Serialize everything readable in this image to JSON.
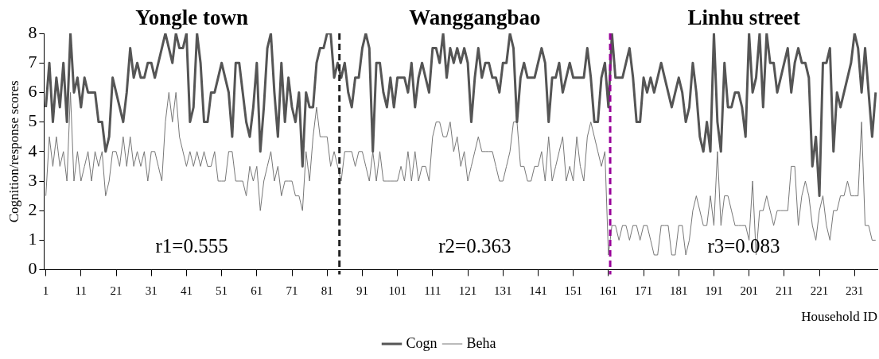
{
  "chart_data": {
    "type": "line",
    "xlabel": "Household ID",
    "ylabel": "Cognition/response scores",
    "x": [
      1,
      2,
      3,
      4,
      5,
      6,
      7,
      8,
      9,
      10,
      11,
      12,
      13,
      14,
      15,
      16,
      17,
      18,
      19,
      20,
      21,
      22,
      23,
      24,
      25,
      26,
      27,
      28,
      29,
      30,
      31,
      32,
      33,
      34,
      35,
      36,
      37,
      38,
      39,
      40,
      41,
      42,
      43,
      44,
      45,
      46,
      47,
      48,
      49,
      50,
      51,
      52,
      53,
      54,
      55,
      56,
      57,
      58,
      59,
      60,
      61,
      62,
      63,
      64,
      65,
      66,
      67,
      68,
      69,
      70,
      71,
      72,
      73,
      74,
      75,
      76,
      77,
      78,
      79,
      80,
      81,
      82,
      83,
      84,
      85,
      86,
      87,
      88,
      89,
      90,
      91,
      92,
      93,
      94,
      95,
      96,
      97,
      98,
      99,
      100,
      101,
      102,
      103,
      104,
      105,
      106,
      107,
      108,
      109,
      110,
      111,
      112,
      113,
      114,
      115,
      116,
      117,
      118,
      119,
      120,
      121,
      122,
      123,
      124,
      125,
      126,
      127,
      128,
      129,
      130,
      131,
      132,
      133,
      134,
      135,
      136,
      137,
      138,
      139,
      140,
      141,
      142,
      143,
      144,
      145,
      146,
      147,
      148,
      149,
      150,
      151,
      152,
      153,
      154,
      155,
      156,
      157,
      158,
      159,
      160,
      161,
      162,
      163,
      164,
      165,
      166,
      167,
      168,
      169,
      170,
      171,
      172,
      173,
      174,
      175,
      176,
      177,
      178,
      179,
      180,
      181,
      182,
      183,
      184,
      185,
      186,
      187,
      188,
      189,
      190,
      191,
      192,
      193,
      194,
      195,
      196,
      197,
      198,
      199,
      200,
      201,
      202,
      203,
      204,
      205,
      206,
      207,
      208,
      209,
      210,
      211,
      212,
      213,
      214,
      215,
      216,
      217,
      218,
      219,
      220,
      221,
      222,
      223,
      224,
      225,
      226,
      227,
      228,
      229,
      230,
      231,
      232,
      233,
      234,
      235,
      236,
      237
    ],
    "series": [
      {
        "name": "Cogn",
        "color": "#555555",
        "values": [
          5.5,
          7,
          5,
          6.5,
          5.5,
          7,
          5,
          8,
          6,
          6.5,
          5.5,
          6.5,
          6,
          6,
          6,
          5,
          5,
          4,
          4.5,
          6.5,
          6,
          5.5,
          5,
          6,
          7.5,
          6.5,
          7,
          6.5,
          6.5,
          7,
          7,
          6.5,
          7,
          7.5,
          8,
          7.5,
          7,
          8,
          7.5,
          7.5,
          8,
          5,
          5.5,
          8,
          7,
          5,
          5,
          6,
          6,
          6.5,
          7,
          6.5,
          6,
          4.5,
          7,
          7,
          6,
          5,
          4.5,
          5.5,
          7,
          4,
          5.5,
          7.5,
          8,
          6,
          4.5,
          7,
          5,
          6.5,
          5.5,
          5,
          6,
          3.5,
          6,
          5.5,
          5.5,
          7,
          7.5,
          7.5,
          8,
          8,
          6.5,
          7,
          6.5,
          7,
          6,
          5.5,
          6.5,
          6.5,
          7.5,
          8,
          7.5,
          4,
          7,
          7,
          6,
          5.5,
          6.5,
          5.5,
          6.5,
          6.5,
          6.5,
          6,
          7,
          5.5,
          6.5,
          7,
          6.5,
          6,
          7.5,
          7.5,
          7,
          8,
          6.5,
          7.5,
          7,
          7.5,
          7,
          7.5,
          7,
          5,
          6.5,
          7.5,
          6.5,
          7,
          7,
          6.5,
          6.5,
          6,
          7,
          7,
          8,
          7.5,
          5,
          6.5,
          7,
          6.5,
          6.5,
          6.5,
          7,
          7.5,
          7,
          5,
          6.5,
          6.5,
          7,
          6,
          6.5,
          7,
          6.5,
          6.5,
          6.5,
          6.5,
          7.5,
          6.5,
          5,
          5,
          6.5,
          7,
          5.5,
          8,
          6.5,
          6.5,
          6.5,
          7,
          7.5,
          6.5,
          5,
          5,
          6.5,
          6,
          6.5,
          6,
          6.5,
          7,
          6.5,
          6,
          5.5,
          6,
          6.5,
          6,
          5,
          5.5,
          7,
          6,
          4.5,
          4,
          5,
          4,
          8,
          5,
          4,
          7,
          5.5,
          5.5,
          6,
          6,
          5.5,
          4.5,
          8,
          6,
          6.5,
          8,
          5.5,
          8,
          7,
          7,
          6,
          6.5,
          7,
          7.5,
          6,
          7,
          7.5,
          7,
          7,
          6.5,
          3.5,
          4.5,
          2.5,
          7,
          7,
          7.5,
          4,
          6,
          5.5,
          6,
          6.5,
          7,
          8,
          7.5,
          6,
          7.5,
          6,
          4.5,
          6
        ]
      },
      {
        "name": "Beha",
        "color": "#777777",
        "values": [
          2.5,
          4.5,
          3.5,
          4.5,
          3.5,
          4,
          3,
          6,
          3,
          4,
          3,
          3.5,
          4,
          3,
          4,
          3.5,
          4,
          2.5,
          3,
          4,
          4,
          3.5,
          4.5,
          3.5,
          4.5,
          3.5,
          4,
          3.5,
          4,
          3,
          4,
          4,
          3.5,
          3,
          5,
          6,
          5,
          6,
          4.5,
          4,
          3.5,
          4,
          3.5,
          4,
          3.5,
          4,
          3.5,
          3.5,
          4,
          3,
          3,
          3,
          4,
          4,
          3,
          3,
          3,
          2.5,
          3.5,
          3,
          3.5,
          2,
          3,
          3.5,
          4,
          3,
          3.5,
          2.5,
          3,
          3,
          3,
          2.5,
          2.5,
          2,
          4,
          3,
          4.5,
          5.5,
          4.5,
          4.5,
          4.5,
          3.5,
          4,
          3.5,
          3,
          4,
          4,
          4,
          3.5,
          4,
          4,
          3.5,
          3,
          4,
          3,
          4,
          3,
          3,
          3,
          3,
          3,
          3.5,
          3,
          4,
          3,
          4,
          3,
          3.5,
          3.5,
          3,
          4.5,
          5,
          5,
          4.5,
          4.5,
          5,
          4,
          4.5,
          3.5,
          4,
          3,
          3.5,
          4,
          4.5,
          4,
          4,
          4,
          4,
          3.5,
          3,
          3,
          3.5,
          4,
          5,
          5,
          3.5,
          3.5,
          3,
          3,
          3.5,
          3.5,
          4,
          3,
          4.5,
          3,
          3.5,
          4,
          4.5,
          3,
          3.5,
          3,
          4.5,
          3.5,
          3,
          4.5,
          5,
          4.5,
          4,
          3.5,
          4,
          0.5,
          1.5,
          1.5,
          1,
          1.5,
          1.5,
          1,
          1.5,
          1.5,
          1,
          1.5,
          1.5,
          1,
          0.5,
          0.5,
          1.5,
          1.5,
          1.5,
          0.5,
          0.5,
          1.5,
          1.5,
          0.5,
          1,
          2,
          2.5,
          2,
          1.5,
          1.5,
          2.5,
          1.5,
          4,
          1.5,
          2.5,
          2.5,
          2,
          1.5,
          1.5,
          1.5,
          1.5,
          1,
          3,
          0.5,
          2,
          2,
          2.5,
          2,
          1.5,
          2,
          2,
          2,
          2,
          3.5,
          3.5,
          1.5,
          2.5,
          3,
          2.5,
          1.5,
          1,
          2,
          2.5,
          1.5,
          1,
          2,
          2,
          2.5,
          2.5,
          3,
          2.5,
          2.5,
          2.5,
          5,
          1.5,
          1.5,
          1,
          1
        ]
      }
    ],
    "xlim": [
      0.5,
      237.5
    ],
    "xticks": [
      1,
      11,
      21,
      31,
      41,
      51,
      61,
      71,
      81,
      91,
      101,
      111,
      121,
      131,
      141,
      151,
      161,
      171,
      181,
      191,
      201,
      211,
      221,
      231
    ],
    "ylim": [
      0,
      8
    ],
    "yticks": [
      0,
      1,
      2,
      3,
      4,
      5,
      6,
      7,
      8
    ],
    "grid": false,
    "legend": "bottom",
    "marker": "none",
    "line_style": "solid",
    "ref_lines": [
      {
        "axis": "x",
        "value": 84.5,
        "color": "#222222",
        "line_style": "dashed"
      },
      {
        "axis": "x",
        "value": 161.5,
        "color": "#990099",
        "line_style": "dashed"
      }
    ],
    "annotations": [
      "Yongle town",
      "Wanggangbao",
      "Linhu street",
      "r1=0.555",
      "r2=0.363",
      "r3=0.083"
    ]
  }
}
